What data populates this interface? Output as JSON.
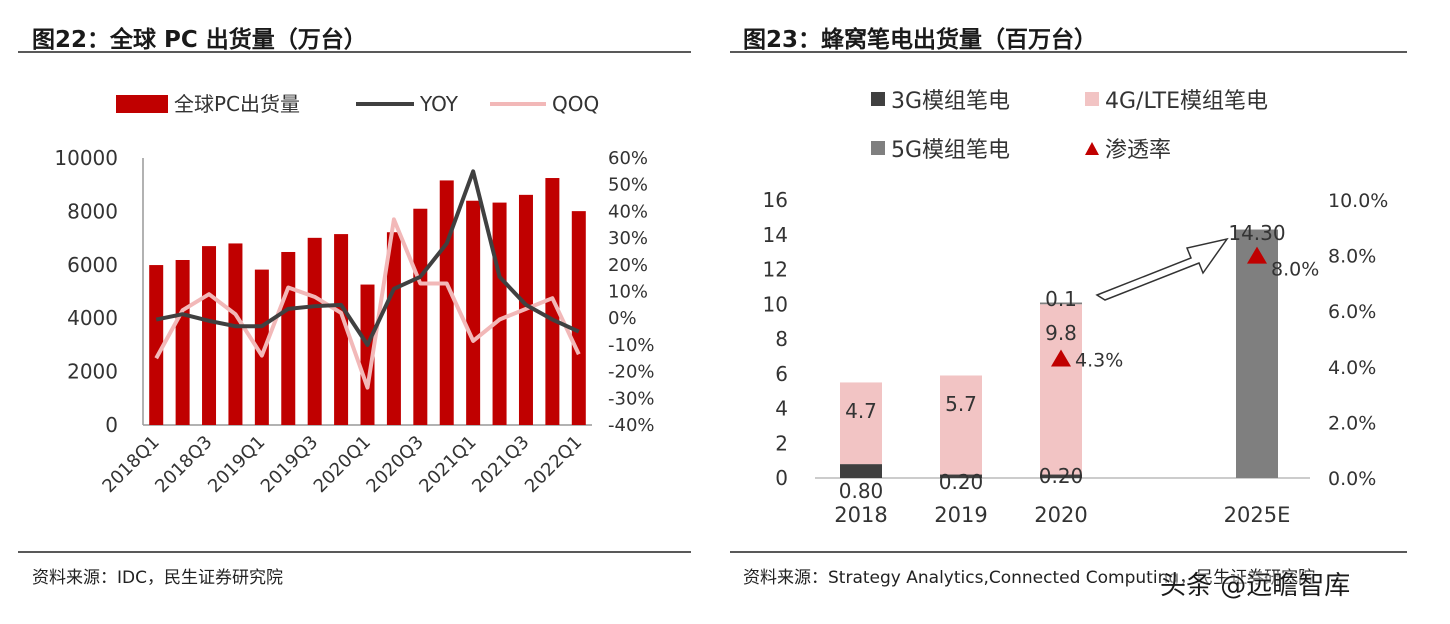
{
  "left": {
    "title": "图22：全球 PC 出货量（万台）",
    "source": "资料来源：IDC，民生证券研究院",
    "colors": {
      "bar": "#c00000",
      "yoy": "#404040",
      "qoq": "#f2b8b8"
    },
    "chart_data": {
      "type": "bar+line",
      "legend": [
        "全球PC出货量",
        "YOY",
        "QOQ"
      ],
      "categories": [
        "2018Q1",
        "2018Q2",
        "2018Q3",
        "2018Q4",
        "2019Q1",
        "2019Q2",
        "2019Q3",
        "2019Q4",
        "2020Q1",
        "2020Q2",
        "2020Q3",
        "2020Q4",
        "2021Q1",
        "2021Q2",
        "2021Q3",
        "2021Q4",
        "2022Q1"
      ],
      "x_tick_labels": [
        "2018Q1",
        "2018Q3",
        "2019Q1",
        "2019Q3",
        "2020Q1",
        "2020Q3",
        "2021Q1",
        "2021Q3",
        "2022Q1"
      ],
      "series": [
        {
          "name": "全球PC出货量",
          "axis": "left",
          "kind": "bar",
          "values": [
            5990,
            6180,
            6700,
            6800,
            5820,
            6480,
            7010,
            7150,
            5260,
            7220,
            8100,
            9160,
            8400,
            8330,
            8620,
            9250,
            8010
          ]
        },
        {
          "name": "YOY",
          "axis": "right",
          "kind": "line",
          "values": [
            -0.5,
            1.5,
            -1.0,
            -3.0,
            -3.0,
            3.5,
            4.5,
            5.0,
            -10.0,
            11.0,
            15.5,
            28.0,
            55.0,
            15.5,
            5.0,
            -0.5,
            -5.0
          ]
        },
        {
          "name": "QOQ",
          "axis": "right",
          "kind": "line",
          "values": [
            -15.0,
            3.0,
            9.0,
            1.5,
            -14.0,
            11.5,
            8.0,
            2.0,
            -26.0,
            37.0,
            13.0,
            13.0,
            -8.5,
            -0.5,
            3.5,
            7.5,
            -13.5
          ]
        }
      ],
      "y_left": {
        "min": 0,
        "max": 10000,
        "ticks": [
          "0",
          "2000",
          "4000",
          "6000",
          "8000",
          "10000"
        ]
      },
      "y_right": {
        "min": -40,
        "max": 60,
        "ticks": [
          "-40%",
          "-30%",
          "-20%",
          "-10%",
          "0%",
          "10%",
          "20%",
          "30%",
          "40%",
          "50%",
          "60%"
        ]
      }
    }
  },
  "right": {
    "title": "图23：蜂窝笔电出货量（百万台）",
    "source": "资料来源：Strategy Analytics,Connected Computing，民生证券研究院",
    "colors": {
      "g3": "#404040",
      "g4": "#f2c4c4",
      "g5": "#7f7f7f",
      "pen": "#c00000"
    },
    "chart_data": {
      "type": "stacked-bar+scatter",
      "legend": [
        "3G模组笔电",
        "4G/LTE模组笔电",
        "5G模组笔电",
        "渗透率"
      ],
      "categories": [
        "2018",
        "2019",
        "2020",
        "2025E"
      ],
      "series": [
        {
          "name": "3G模组笔电",
          "values": [
            0.8,
            0.2,
            0.2,
            0
          ],
          "labels": [
            "0.80",
            "0.20",
            "0.20",
            ""
          ]
        },
        {
          "name": "4G/LTE模组笔电",
          "values": [
            4.7,
            5.7,
            9.8,
            0
          ],
          "labels": [
            "4.7",
            "5.7",
            "9.8",
            ""
          ]
        },
        {
          "name": "5G模组笔电",
          "values": [
            0,
            0,
            0.1,
            14.3
          ],
          "labels": [
            "",
            "",
            "0.1",
            "14.30"
          ]
        },
        {
          "name": "渗透率",
          "axis": "right",
          "values": [
            null,
            null,
            4.3,
            8.0
          ],
          "labels": [
            "",
            "",
            "4.3%",
            "8.0%"
          ]
        }
      ],
      "y_left": {
        "min": 0,
        "max": 16,
        "ticks": [
          "0",
          "2",
          "4",
          "6",
          "8",
          "10",
          "12",
          "14",
          "16"
        ]
      },
      "y_right": {
        "min": 0,
        "max": 10,
        "ticks": [
          "0.0%",
          "2.0%",
          "4.0%",
          "6.0%",
          "8.0%",
          "10.0%"
        ]
      }
    }
  },
  "watermark": "头条 @远瞻智库"
}
